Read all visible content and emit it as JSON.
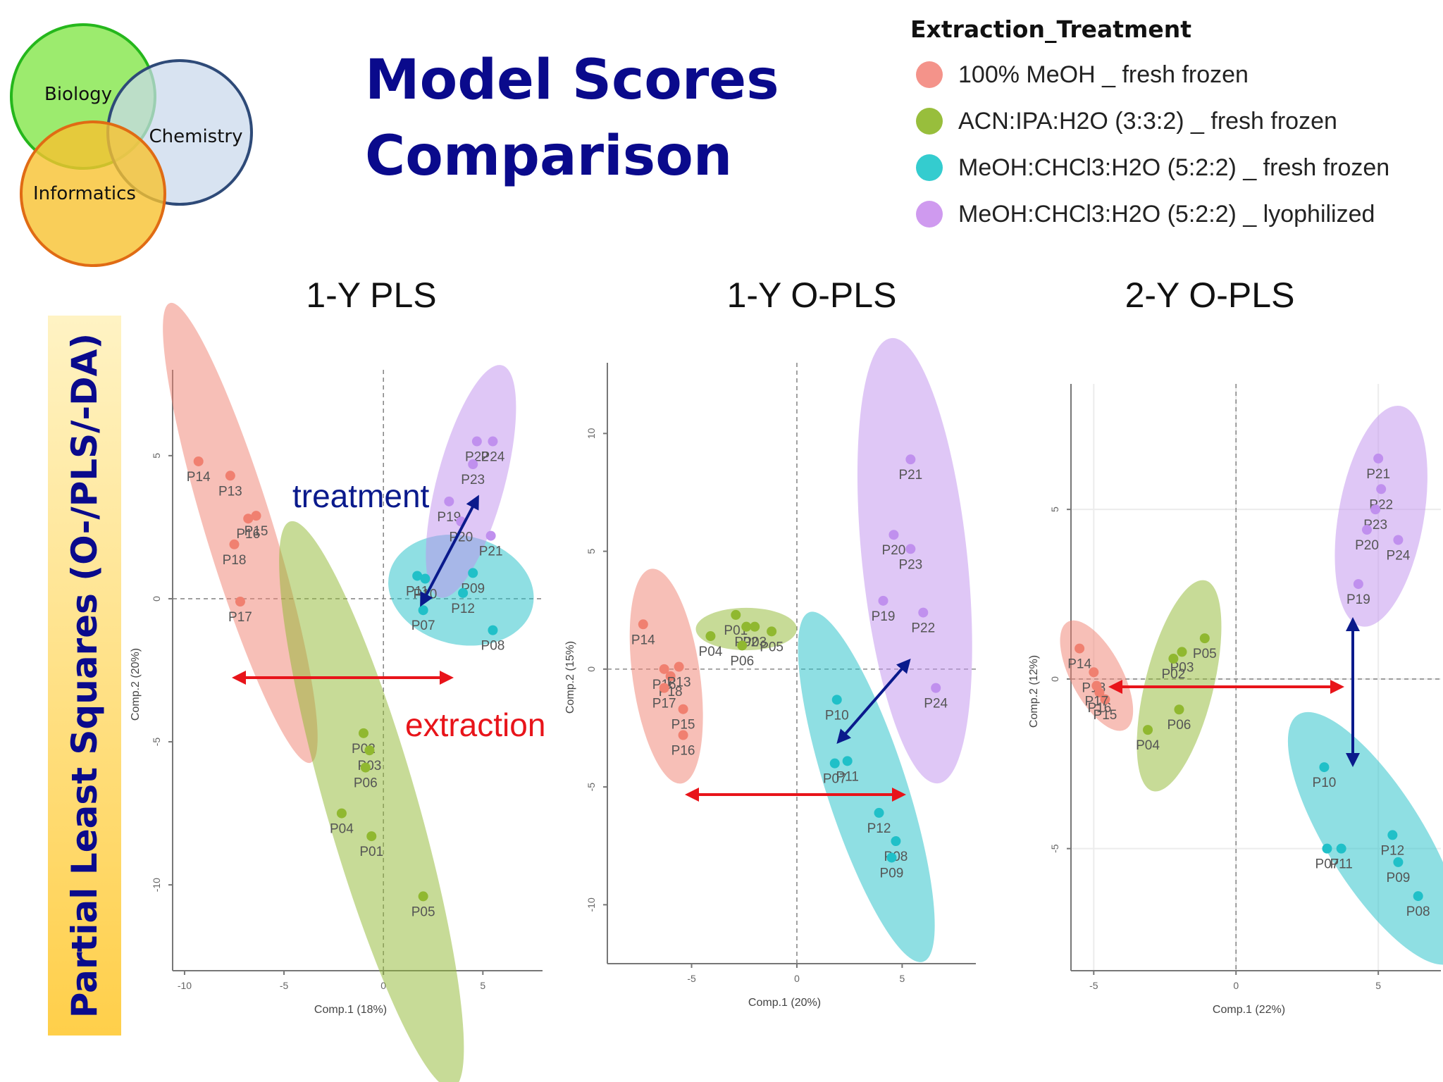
{
  "venn": {
    "circles": [
      {
        "label": "Biology",
        "color": "#8ee85a",
        "stroke": "#25b71c"
      },
      {
        "label": "Chemistry",
        "color": "#c9d8ec",
        "stroke": "#2e4a78"
      },
      {
        "label": "Informatics",
        "color": "#f8c230",
        "stroke": "#e06b14"
      }
    ]
  },
  "title": {
    "line1": "Model Scores",
    "line2": "Comparison"
  },
  "side_label": "Partial Least  Squares (O-/PLS/-DA)",
  "legend": {
    "title": "Extraction_Treatment",
    "items": [
      {
        "label": "100% MeOH _ fresh frozen",
        "color": "#f4938a"
      },
      {
        "label": "ACN:IPA:H2O (3:3:2) _ fresh frozen",
        "color": "#98be3c"
      },
      {
        "label": "MeOH:CHCl3:H2O (5:2:2) _ fresh frozen",
        "color": "#34cccf"
      },
      {
        "label": "MeOH:CHCl3:H2O (5:2:2) _ lyophilized",
        "color": "#cf9aef"
      }
    ]
  },
  "annotations": {
    "treatment": "treatment",
    "extraction": "extraction"
  },
  "chart_data": [
    {
      "type": "scatter",
      "title": "1-Y PLS",
      "xlabel": "Comp.1 (18%)",
      "ylabel": "Comp.2 (20%)",
      "xlim": [
        -10.6,
        8
      ],
      "ylim": [
        -13,
        8
      ],
      "xticks": [
        -10,
        -5,
        0,
        5
      ],
      "yticks": [
        5,
        0,
        -5,
        -10
      ],
      "grid": false,
      "series": [
        {
          "name": "100% MeOH _ fresh frozen",
          "color": "#f08070",
          "points": [
            [
              "P14",
              -9.3,
              4.8
            ],
            [
              "P13",
              -7.7,
              4.3
            ],
            [
              "P16",
              -6.8,
              2.8
            ],
            [
              "P15",
              -6.4,
              2.9
            ],
            [
              "P18",
              -7.5,
              1.9
            ],
            [
              "P17",
              -7.2,
              -0.1
            ]
          ],
          "ellipse": {
            "cx": -7.2,
            "cy": 2.3,
            "rx": 1.7,
            "ry": 8.4,
            "angle": -17
          }
        },
        {
          "name": "ACN:IPA:H2O (3:3:2) _ fresh frozen",
          "color": "#90b830",
          "points": [
            [
              "P02",
              -1.0,
              -4.7
            ],
            [
              "P03",
              -0.7,
              -5.3
            ],
            [
              "P06",
              -0.9,
              -5.9
            ],
            [
              "P04",
              -2.1,
              -7.5
            ],
            [
              "P01",
              -0.6,
              -8.3
            ],
            [
              "P05",
              2.0,
              -10.4
            ]
          ],
          "ellipse": {
            "cx": -0.6,
            "cy": -7.2,
            "rx": 2.3,
            "ry": 10.3,
            "angle": -16
          }
        },
        {
          "name": "MeOH:CHCl3:H2O (5:2:2) _ fresh frozen",
          "color": "#20c0c8",
          "points": [
            [
              "P11",
              1.7,
              0.8
            ],
            [
              "P10",
              2.1,
              0.7
            ],
            [
              "P09",
              4.5,
              0.9
            ],
            [
              "P12",
              4.0,
              0.2
            ],
            [
              "P07",
              2.0,
              -0.4
            ],
            [
              "P08",
              5.5,
              -1.1
            ]
          ],
          "ellipse": {
            "cx": 3.9,
            "cy": 0.3,
            "rx": 3.7,
            "ry": 1.9,
            "angle": 13
          }
        },
        {
          "name": "MeOH:CHCl3:H2O (5:2:2) _ lyophilized",
          "color": "#c090ee",
          "points": [
            [
              "P22",
              4.7,
              5.5
            ],
            [
              "P24",
              5.5,
              5.5
            ],
            [
              "P23",
              4.5,
              4.7
            ],
            [
              "P19",
              3.3,
              3.4
            ],
            [
              "P20",
              3.9,
              2.7
            ],
            [
              "P21",
              5.4,
              2.2
            ]
          ],
          "ellipse": {
            "cx": 4.4,
            "cy": 4.1,
            "rx": 1.7,
            "ry": 4.2,
            "angle": 15
          }
        }
      ]
    },
    {
      "type": "scatter",
      "title": "1-Y O-PLS",
      "xlabel": "Comp.1 (20%)",
      "ylabel": "Comp.2 (15%)",
      "xlim": [
        -9,
        8.5
      ],
      "ylim": [
        -12.5,
        13
      ],
      "xticks": [
        -5,
        0,
        5
      ],
      "yticks": [
        10,
        5,
        0,
        -5,
        -10
      ],
      "grid": false,
      "series": [
        {
          "name": "100% MeOH _ fresh frozen",
          "color": "#f08070",
          "points": [
            [
              "P14",
              -7.3,
              1.9
            ],
            [
              "P16",
              -6.3,
              0.0
            ],
            [
              "P18",
              -6.0,
              -0.3
            ],
            [
              "P13",
              -5.6,
              0.1
            ],
            [
              "P17",
              -6.3,
              -0.8
            ],
            [
              "P15",
              -5.4,
              -1.7
            ],
            [
              "P16",
              -5.4,
              -2.8
            ]
          ],
          "ellipse": {
            "cx": -6.2,
            "cy": -0.3,
            "rx": 1.6,
            "ry": 4.6,
            "angle": -8
          }
        },
        {
          "name": "ACN:IPA:H2O (3:3:2) _ fresh frozen",
          "color": "#90b830",
          "points": [
            [
              "P01",
              -2.9,
              2.3
            ],
            [
              "P02",
              -2.4,
              1.8
            ],
            [
              "P03",
              -2.0,
              1.8
            ],
            [
              "P05",
              -1.2,
              1.6
            ],
            [
              "P04",
              -4.1,
              1.4
            ],
            [
              "P06",
              -2.6,
              1.0
            ]
          ],
          "ellipse": {
            "cx": -2.4,
            "cy": 1.7,
            "rx": 2.4,
            "ry": 0.9,
            "angle": 0
          }
        },
        {
          "name": "MeOH:CHCl3:H2O (5:2:2) _ fresh frozen",
          "color": "#20c0c8",
          "points": [
            [
              "P10",
              1.9,
              -1.3
            ],
            [
              "P11",
              2.4,
              -3.9
            ],
            [
              "P07",
              1.8,
              -4.0
            ],
            [
              "P12",
              3.9,
              -6.1
            ],
            [
              "P08",
              4.7,
              -7.3
            ],
            [
              "P09",
              4.5,
              -8.0
            ]
          ],
          "ellipse": {
            "cx": 3.3,
            "cy": -5.0,
            "rx": 1.9,
            "ry": 7.8,
            "angle": -18
          }
        },
        {
          "name": "MeOH:CHCl3:H2O (5:2:2) _ lyophilized",
          "color": "#c090ee",
          "points": [
            [
              "P21",
              5.4,
              8.9
            ],
            [
              "P20",
              4.6,
              5.7
            ],
            [
              "P23",
              5.4,
              5.1
            ],
            [
              "P19",
              4.1,
              2.9
            ],
            [
              "P22",
              6.0,
              2.4
            ],
            [
              "P24",
              6.6,
              -0.8
            ]
          ],
          "ellipse": {
            "cx": 5.6,
            "cy": 4.6,
            "rx": 2.5,
            "ry": 9.5,
            "angle": -6
          }
        }
      ]
    },
    {
      "type": "scatter",
      "title": "2-Y O-PLS",
      "xlabel": "Comp.1 (22%)",
      "ylabel": "Comp.2 (12%)",
      "xlim": [
        -5.8,
        7.2
      ],
      "ylim": [
        -8.6,
        8.7
      ],
      "xticks": [
        -5,
        0,
        5
      ],
      "yticks": [
        5,
        0,
        -5
      ],
      "grid": true,
      "series": [
        {
          "name": "100% MeOH _ fresh frozen",
          "color": "#f08070",
          "points": [
            [
              "P14",
              -5.5,
              0.9
            ],
            [
              "P13",
              -5.0,
              0.2
            ],
            [
              "P16",
              -4.8,
              -0.4
            ],
            [
              "P15",
              -4.6,
              -0.6
            ],
            [
              "P17",
              -4.9,
              -0.2
            ]
          ],
          "ellipse": {
            "cx": -4.9,
            "cy": 0.1,
            "rx": 0.9,
            "ry": 1.8,
            "angle": -28
          }
        },
        {
          "name": "ACN:IPA:H2O (3:3:2) _ fresh frozen",
          "color": "#90b830",
          "points": [
            [
              "P03",
              -1.9,
              0.8
            ],
            [
              "P02",
              -2.2,
              0.6
            ],
            [
              "P05",
              -1.1,
              1.2
            ],
            [
              "P06",
              -2.0,
              -0.9
            ],
            [
              "P04",
              -3.1,
              -1.5
            ]
          ],
          "ellipse": {
            "cx": -2.0,
            "cy": -0.2,
            "rx": 1.2,
            "ry": 3.2,
            "angle": 14
          }
        },
        {
          "name": "MeOH:CHCl3:H2O (5:2:2) _ fresh frozen",
          "color": "#20c0c8",
          "points": [
            [
              "P10",
              3.1,
              -2.6
            ],
            [
              "P07",
              3.2,
              -5.0
            ],
            [
              "P11",
              3.7,
              -5.0
            ],
            [
              "P12",
              5.5,
              -4.6
            ],
            [
              "P09",
              5.7,
              -5.4
            ],
            [
              "P08",
              6.4,
              -6.4
            ]
          ],
          "ellipse": {
            "cx": 4.9,
            "cy": -4.7,
            "rx": 1.7,
            "ry": 4.3,
            "angle": -32
          }
        },
        {
          "name": "MeOH:CHCl3:H2O (5:2:2) _ lyophilized",
          "color": "#c090ee",
          "points": [
            [
              "P21",
              5.0,
              6.5
            ],
            [
              "P22",
              5.1,
              5.6
            ],
            [
              "P23",
              4.9,
              5.0
            ],
            [
              "P20",
              4.6,
              4.4
            ],
            [
              "P24",
              5.7,
              4.1
            ],
            [
              "P19",
              4.3,
              2.8
            ]
          ],
          "ellipse": {
            "cx": 5.1,
            "cy": 4.8,
            "rx": 1.5,
            "ry": 3.3,
            "angle": 10
          }
        }
      ]
    }
  ]
}
